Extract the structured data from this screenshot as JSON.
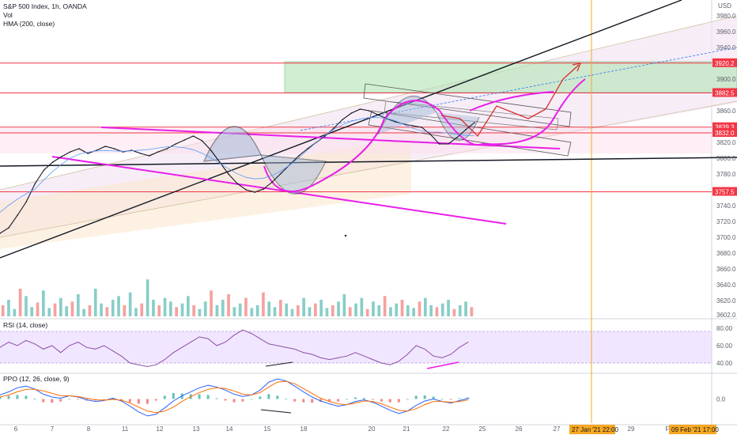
{
  "header": {
    "title": "S&P 500 Index, 1h, OANDA",
    "vol_label": "Vol",
    "hma_label": "HMA (200, close)",
    "currency": "USD"
  },
  "rsi": {
    "label": "RSI (14, close)",
    "ticks": [
      "80.00",
      "60.00",
      "40.00"
    ]
  },
  "ppo": {
    "label": "PPO (12, 26, close, 9)",
    "ticks": [
      "0.0"
    ]
  },
  "colors": {
    "magenta": "#e91ee9",
    "red_line": "#f23645",
    "orange_line": "#f6a821",
    "green_zone": "#b2e6b5",
    "rsi_band": "#ede0ff",
    "rsi_line": "#8c4fa8",
    "ppo_line": "#2962ff",
    "ppo_signal": "#ff6d00",
    "vol_up": "#26a69a",
    "vol_down": "#ef5350"
  },
  "chart_data": {
    "type": "line",
    "title": "S&P 500 Index, 1h, OANDA",
    "x_ticks": [
      "6",
      "7",
      "8",
      "11",
      "12",
      "13",
      "14",
      "15",
      "18",
      "20",
      "21",
      "22",
      "25",
      "26",
      "27",
      "29",
      "Fe"
    ],
    "y_ticks": [
      "3980.0",
      "3960.0",
      "3940.0",
      "3900.0",
      "3860.0",
      "3820.0",
      "3800.0",
      "3780.0",
      "3740.0",
      "3720.0",
      "3700.0",
      "3680.0",
      "3660.0",
      "3640.0",
      "3620.0",
      "3602.0"
    ],
    "ylim": [
      3600,
      4000
    ],
    "price_labels": [
      {
        "value": 3920.2,
        "text": "3920.2",
        "color": "#f23645"
      },
      {
        "value": 3882.5,
        "text": "3882.5",
        "color": "#f23645"
      },
      {
        "value": 3839.3,
        "text": "3839.3",
        "color": "#f23645"
      },
      {
        "value": 3832.0,
        "text": "3832.0",
        "color": "#f23645"
      },
      {
        "value": 3757.5,
        "text": "3757.5",
        "color": "#f23645"
      }
    ],
    "horizontal_lines": [
      3920.2,
      3882.5,
      3839.3,
      3832.0,
      3757.5
    ],
    "time_labels": [
      "27 Jan '21   22:00",
      "09 Feb '21   17:00"
    ],
    "series": [
      {
        "values": [
          3705,
          3712,
          3728,
          3745,
          3768,
          3785,
          3795,
          3802,
          3808,
          3812,
          3806,
          3810,
          3815,
          3812,
          3808,
          3810,
          3806,
          3803,
          3808,
          3812,
          3818,
          3823,
          3828,
          3822,
          3810,
          3795,
          3780,
          3768,
          3760,
          3757,
          3761,
          3770,
          3781,
          3792,
          3803,
          3812,
          3820,
          3828,
          3838,
          3849,
          3857,
          3862,
          3860,
          3855,
          3850,
          3846,
          3843,
          3841,
          3839,
          3830,
          3818,
          3818,
          3826,
          3836,
          3845
        ]
      }
    ],
    "rsi_values": [
      58,
      64,
      60,
      66,
      62,
      56,
      60,
      52,
      60,
      64,
      58,
      56,
      60,
      54,
      48,
      40,
      38,
      36,
      38,
      44,
      52,
      58,
      64,
      70,
      68,
      60,
      64,
      72,
      78,
      74,
      68,
      62,
      60,
      58,
      56,
      52,
      50,
      46,
      44,
      46,
      48,
      52,
      48,
      44,
      40,
      38,
      42,
      50,
      60,
      56,
      48,
      46,
      50,
      58,
      64
    ],
    "rsi_ylim": [
      30,
      90
    ],
    "ppo_values": [
      0.1,
      0.18,
      0.28,
      0.32,
      0.25,
      0.12,
      0.05,
      0.02,
      0.08,
      0.05,
      -0.02,
      -0.06,
      -0.04,
      0.02,
      -0.05,
      -0.18,
      -0.32,
      -0.42,
      -0.38,
      -0.22,
      -0.05,
      0.08,
      0.18,
      0.28,
      0.34,
      0.3,
      0.22,
      0.12,
      0.06,
      0.1,
      0.22,
      0.42,
      0.5,
      0.45,
      0.32,
      0.18,
      0.05,
      -0.05,
      -0.12,
      -0.18,
      -0.14,
      -0.06,
      -0.02,
      -0.08,
      -0.18,
      -0.28,
      -0.36,
      -0.3,
      -0.16,
      -0.05,
      0.0,
      -0.06,
      -0.1,
      -0.04,
      0.02
    ],
    "ppo_signal_values": [
      0.05,
      0.1,
      0.18,
      0.24,
      0.24,
      0.2,
      0.14,
      0.08,
      0.08,
      0.06,
      0.02,
      -0.02,
      -0.03,
      -0.01,
      -0.03,
      -0.1,
      -0.2,
      -0.3,
      -0.34,
      -0.3,
      -0.2,
      -0.06,
      0.06,
      0.16,
      0.24,
      0.28,
      0.26,
      0.2,
      0.12,
      0.1,
      0.16,
      0.3,
      0.42,
      0.44,
      0.38,
      0.26,
      0.14,
      0.02,
      -0.06,
      -0.12,
      -0.14,
      -0.1,
      -0.05,
      -0.06,
      -0.12,
      -0.2,
      -0.28,
      -0.3,
      -0.24,
      -0.14,
      -0.06,
      -0.06,
      -0.08,
      -0.06,
      -0.02
    ],
    "ppo_ylim": [
      -0.6,
      0.6
    ],
    "volume": [
      12,
      18,
      8,
      30,
      22,
      10,
      15,
      28,
      9,
      14,
      20,
      11,
      16,
      24,
      8,
      12,
      30,
      14,
      10,
      18,
      22,
      12,
      26,
      9,
      14,
      40,
      18,
      12,
      20,
      16,
      10,
      14,
      22,
      12,
      8,
      16,
      28,
      12,
      18,
      24,
      10,
      14,
      20,
      9,
      12,
      26,
      16,
      10,
      18,
      14,
      8,
      12,
      20,
      10,
      14,
      18,
      9,
      12,
      16,
      24,
      10,
      14,
      20,
      8,
      16,
      12,
      22,
      10,
      14,
      18,
      12,
      9,
      16,
      20,
      12,
      10,
      14,
      18,
      8,
      12,
      16,
      10
    ],
    "volume_ylim": [
      0,
      60
    ]
  }
}
